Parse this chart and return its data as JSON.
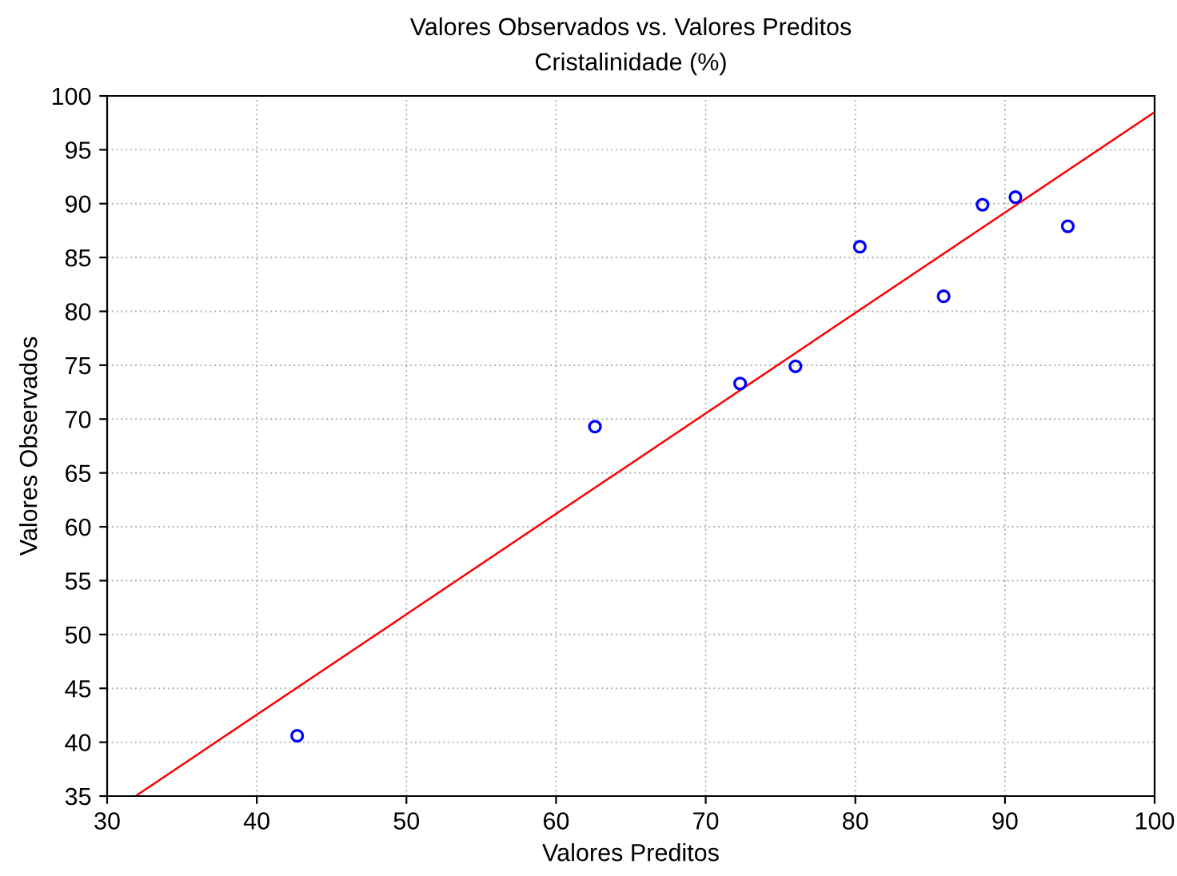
{
  "chart_data": {
    "type": "scatter",
    "title": "Valores Observados vs. Valores Preditos",
    "subtitle": "Cristalinidade (%)",
    "xlabel": "Valores Preditos",
    "ylabel": "Valores Observados",
    "series": [
      {
        "color": "#0000ff",
        "marker": "circle",
        "x": [
          42.7,
          62.6,
          72.3,
          76.0,
          80.3,
          85.9,
          88.5,
          90.7,
          94.2
        ],
        "values": [
          40.6,
          69.3,
          73.3,
          74.9,
          86.0,
          81.4,
          89.9,
          90.6,
          87.9
        ]
      },
      {
        "type": "line",
        "color": "#ff0000",
        "marker": "none",
        "x": [
          31.9,
          100
        ],
        "values": [
          35,
          98.5
        ]
      }
    ],
    "xlim": [
      30,
      100
    ],
    "xticks": [
      30,
      40,
      50,
      60,
      70,
      80,
      90,
      100
    ],
    "ylim": [
      35,
      100
    ],
    "yticks": [
      35,
      40,
      45,
      50,
      55,
      60,
      65,
      70,
      75,
      80,
      85,
      90,
      95,
      100
    ],
    "grid": true,
    "legend": false
  }
}
